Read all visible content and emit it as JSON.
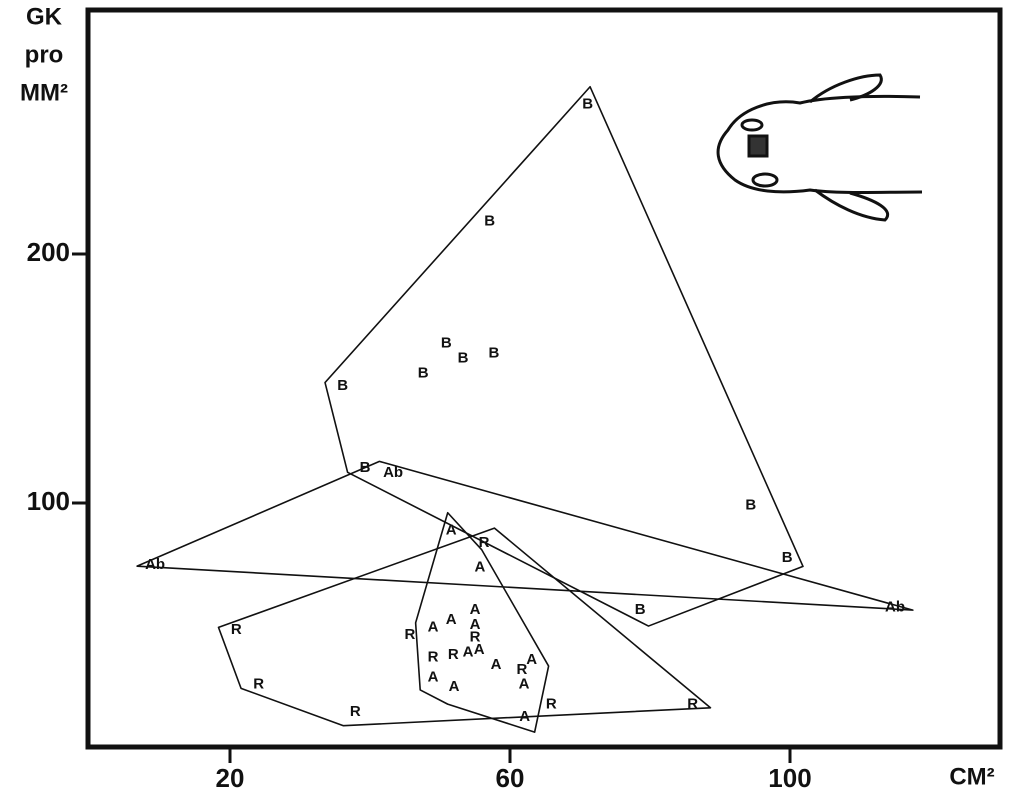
{
  "chart_data": {
    "type": "scatter",
    "y_label": [
      "GK",
      "pro",
      "MM²"
    ],
    "x_label": "CM²",
    "xlim": [
      0,
      130
    ],
    "ylim": [
      0,
      298
    ],
    "xticks": [
      20,
      60,
      100
    ],
    "yticks": [
      100,
      200
    ],
    "color": "#111111",
    "series": [
      {
        "name": "B",
        "x": [
          71.1,
          57.1,
          36.1,
          50.9,
          47.6,
          53.3,
          57.7,
          39.3,
          94.4,
          99.6,
          78.6
        ],
        "values": [
          260,
          213,
          147,
          164,
          152,
          158,
          160,
          114,
          99,
          78,
          57
        ]
      },
      {
        "name": "Ab",
        "x": [
          43.3,
          9.3,
          115
        ],
        "values": [
          112,
          75,
          58
        ]
      },
      {
        "name": "A",
        "x": [
          51.6,
          55.7,
          55,
          49,
          51.6,
          55,
          54,
          55.6,
          49,
          52,
          58,
          62,
          63.1,
          62.1
        ],
        "values": [
          89,
          74,
          57,
          50,
          53,
          51,
          40,
          41,
          30,
          26,
          35,
          27,
          37,
          14
        ]
      },
      {
        "name": "R",
        "x": [
          56.3,
          20.9,
          24.1,
          37.9,
          45.7,
          49,
          51.9,
          55,
          61.7,
          65.9,
          86.1
        ],
        "values": [
          84,
          49,
          27,
          16,
          47,
          38,
          39,
          46,
          33,
          19,
          19
        ]
      }
    ]
  }
}
